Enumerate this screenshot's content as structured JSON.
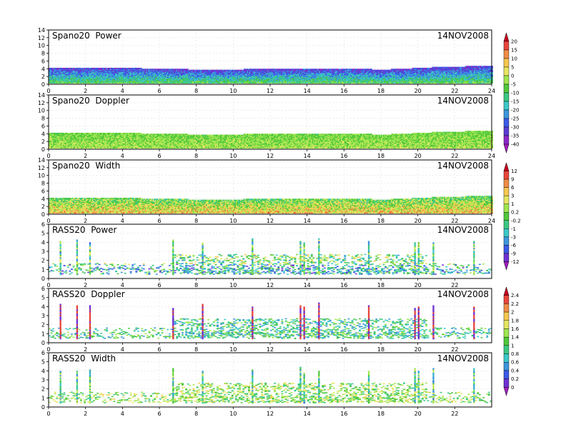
{
  "chart_data": [
    {
      "type": "heatmap",
      "title": "Spano20  Power",
      "date": "14NOV2008",
      "xlim": [
        0,
        24
      ],
      "ylim": [
        0,
        14
      ],
      "xticks": [
        0,
        2,
        4,
        6,
        8,
        10,
        12,
        14,
        16,
        18,
        20,
        22,
        24
      ],
      "yticks": [
        0,
        2,
        4,
        6,
        8,
        10,
        12,
        14
      ],
      "grid": true,
      "signal": {
        "top_height": [
          4.1,
          4.1,
          4.2,
          4.2,
          4.1,
          4.0,
          4.0,
          3.8,
          3.7,
          3.7,
          3.7,
          3.8,
          3.8,
          3.8,
          3.9,
          4.0,
          3.9,
          3.8,
          3.7,
          3.8,
          4.1,
          4.3,
          4.4,
          4.6,
          4.6
        ],
        "vmin": -40,
        "vmax": 20
      },
      "colorbar": "cb1"
    },
    {
      "type": "heatmap",
      "title": "Spano20  Doppler",
      "date": "14NOV2008",
      "xlim": [
        0,
        24
      ],
      "ylim": [
        0,
        14
      ],
      "xticks": [
        0,
        2,
        4,
        6,
        8,
        10,
        12,
        14,
        16,
        18,
        20,
        22,
        24
      ],
      "yticks": [
        0,
        2,
        4,
        6,
        8,
        10,
        12,
        14
      ],
      "grid": true,
      "signal": {
        "top_height": [
          4.1,
          4.1,
          4.2,
          4.2,
          4.1,
          4.0,
          4.0,
          3.8,
          3.7,
          3.7,
          3.7,
          3.8,
          3.8,
          3.8,
          3.9,
          4.0,
          3.9,
          3.8,
          3.7,
          3.8,
          4.1,
          4.3,
          4.4,
          4.6,
          4.6
        ],
        "vmin": -40,
        "vmax": 20
      },
      "colorbar": "cb1"
    },
    {
      "type": "heatmap",
      "title": "Spano20  Width",
      "date": "14NOV2008",
      "xlim": [
        0,
        24
      ],
      "ylim": [
        0,
        14
      ],
      "xticks": [
        0,
        2,
        4,
        6,
        8,
        10,
        12,
        14,
        16,
        18,
        20,
        22,
        24
      ],
      "yticks": [
        0,
        2,
        4,
        6,
        8,
        10,
        12,
        14
      ],
      "grid": true,
      "signal": {
        "top_height": [
          4.1,
          4.1,
          4.2,
          4.2,
          4.1,
          4.0,
          4.0,
          3.8,
          3.7,
          3.7,
          3.7,
          3.8,
          3.8,
          3.8,
          3.9,
          4.0,
          3.9,
          3.8,
          3.7,
          3.8,
          4.1,
          4.3,
          4.4,
          4.6,
          4.6
        ],
        "vmin": -12,
        "vmax": 12
      },
      "colorbar": "cb2"
    },
    {
      "type": "heatmap",
      "title": "RASS20  Power",
      "date": "14NOV2008",
      "xlim": [
        0,
        24
      ],
      "ylim": [
        0,
        6
      ],
      "xticks": [
        0,
        2,
        4,
        6,
        8,
        10,
        12,
        14,
        16,
        18,
        20,
        22
      ],
      "yticks": [
        0,
        1,
        2,
        3,
        4,
        5,
        6
      ],
      "grid": true,
      "signal": {
        "spikes": [
          0.6,
          1.5,
          2.2,
          6.7,
          8.3,
          11.0,
          13.6,
          13.8,
          14.6,
          17.3,
          19.8,
          20.0,
          20.8,
          23.0
        ],
        "vmin": -12,
        "vmax": 12
      },
      "colorbar": "cb2"
    },
    {
      "type": "heatmap",
      "title": "RASS20  Doppler",
      "date": "14NOV2008",
      "xlim": [
        0,
        24
      ],
      "ylim": [
        0,
        6
      ],
      "xticks": [
        0,
        2,
        4,
        6,
        8,
        10,
        12,
        14,
        16,
        18,
        20,
        22
      ],
      "yticks": [
        0,
        1,
        2,
        3,
        4,
        5,
        6
      ],
      "grid": true,
      "signal": {
        "spikes": [
          0.6,
          1.5,
          2.2,
          6.7,
          8.3,
          11.0,
          13.6,
          13.8,
          14.6,
          17.3,
          19.8,
          20.0,
          20.8,
          23.0
        ],
        "vmin": 0,
        "vmax": 2.4
      },
      "colorbar": "cb3"
    },
    {
      "type": "heatmap",
      "title": "RASS20  Width",
      "date": "14NOV2008",
      "xlim": [
        0,
        24
      ],
      "ylim": [
        0,
        6
      ],
      "xticks": [
        0,
        2,
        4,
        6,
        8,
        10,
        12,
        14,
        16,
        18,
        20,
        22
      ],
      "yticks": [
        0,
        1,
        2,
        3,
        4,
        5,
        6
      ],
      "grid": true,
      "signal": {
        "spikes": [
          0.6,
          1.5,
          2.2,
          6.7,
          8.3,
          11.0,
          13.6,
          13.8,
          14.6,
          17.3,
          19.8,
          20.0,
          20.8,
          23.0
        ],
        "vmin": 0,
        "vmax": 2.4
      },
      "colorbar": "cb3"
    }
  ],
  "colorbars": {
    "cb1": {
      "labels": [
        "20",
        "15",
        "10",
        "5",
        "0",
        "-5",
        "-10",
        "-15",
        "-20",
        "-25",
        "-30",
        "-35",
        "-40"
      ],
      "colors": [
        "#c8001e",
        "#e8463c",
        "#f08c46",
        "#f5c850",
        "#e6e664",
        "#a0e650",
        "#50c83c",
        "#3cc882",
        "#3cc8c8",
        "#3c96dc",
        "#3c5ae6",
        "#5a3cd2",
        "#8c28c8",
        "#a01ebe"
      ]
    },
    "cb2": {
      "labels": [
        "12",
        "9",
        "6",
        "3",
        "1",
        "0.2",
        "-0.2",
        "-1",
        "-3",
        "-6",
        "-9",
        "-12"
      ],
      "colors": [
        "#c8001e",
        "#e8463c",
        "#f08c46",
        "#f5c850",
        "#e6e664",
        "#a0e650",
        "#50c83c",
        "#3cc882",
        "#3cc8c8",
        "#3c96dc",
        "#3c5ae6",
        "#6e32d2",
        "#a01ebe"
      ]
    },
    "cb3": {
      "labels": [
        "2.4",
        "2.2",
        "2",
        "1.8",
        "1.6",
        "1.4",
        "1",
        "0.8",
        "0.6",
        "0.4",
        "0.2",
        "0"
      ],
      "colors": [
        "#c8001e",
        "#e8463c",
        "#f08c46",
        "#f5c850",
        "#e6e664",
        "#a0e650",
        "#50c83c",
        "#3cc882",
        "#3cc8c8",
        "#3c96dc",
        "#3c5ae6",
        "#6e32d2",
        "#a01ebe"
      ]
    }
  }
}
